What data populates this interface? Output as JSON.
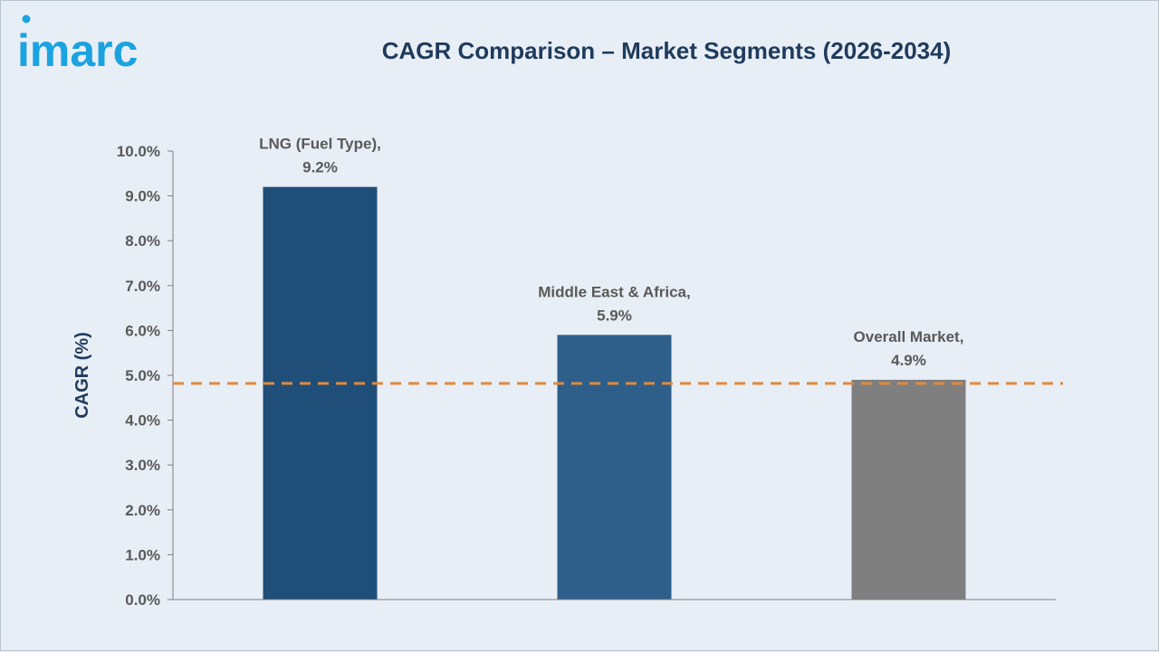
{
  "brand": {
    "logo_text": "imarc",
    "logo_color": "#1aa3e0"
  },
  "colors": {
    "background": "#e8eef5",
    "title": "#1f3b5c",
    "reference_line": "#e08a3c",
    "axis": "#7f7f7f"
  },
  "chart_data": {
    "type": "bar",
    "title": "CAGR Comparison – Market Segments (2026-2034)",
    "xlabel": "",
    "ylabel": "CAGR (%)",
    "ylim": [
      0,
      10
    ],
    "ytick_step": 1,
    "yticks": [
      "0.0%",
      "1.0%",
      "2.0%",
      "3.0%",
      "4.0%",
      "5.0%",
      "6.0%",
      "7.0%",
      "8.0%",
      "9.0%",
      "10.0%"
    ],
    "categories": [
      "LNG (Fuel Type)",
      "Middle East & Africa",
      "Overall Market"
    ],
    "values": [
      9.2,
      5.9,
      4.9
    ],
    "data_labels": [
      [
        "LNG (Fuel Type),",
        "9.2%"
      ],
      [
        "Middle East & Africa,",
        "5.9%"
      ],
      [
        "Overall Market,",
        "4.9%"
      ]
    ],
    "bar_colors": [
      "#1f4e79",
      "#2e5f8a",
      "#7f7f7f"
    ],
    "reference_line": {
      "value": 4.9,
      "style": "dashed"
    },
    "grid": false,
    "legend": "none"
  }
}
